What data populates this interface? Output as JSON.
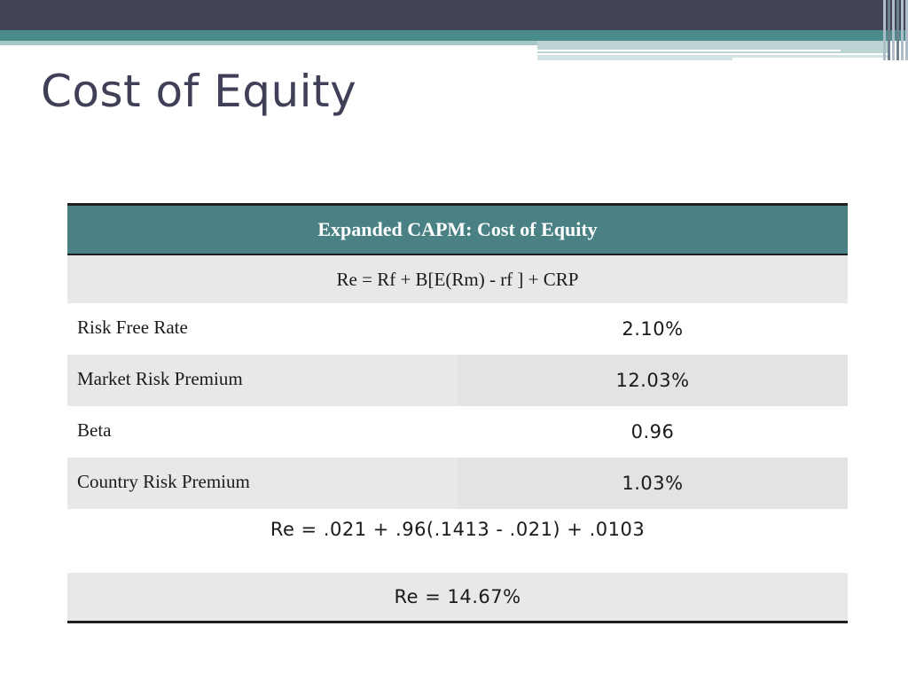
{
  "slide": {
    "title": "Cost of Equity"
  },
  "table": {
    "header": "Expanded CAPM: Cost of Equity",
    "formula": "Re = Rf + B[E(Rm) - rf ] + CRP",
    "rows": [
      {
        "label": "Risk Free Rate",
        "value": "2.10%"
      },
      {
        "label": "Market Risk Premium",
        "value": "12.03%"
      },
      {
        "label": "Beta",
        "value": "0.96"
      },
      {
        "label": "Country Risk Premium",
        "value": "1.03%"
      }
    ],
    "calculation": "Re = .021 + .96(.1413 - .021) + .0103",
    "result": "Re = 14.67%"
  },
  "colors": {
    "banner_dark": "#434357",
    "banner_teal": "#4a8b8c",
    "header_fill": "#4a8185",
    "title_text": "#3f4057",
    "row_gray": "#e8e8e8"
  }
}
